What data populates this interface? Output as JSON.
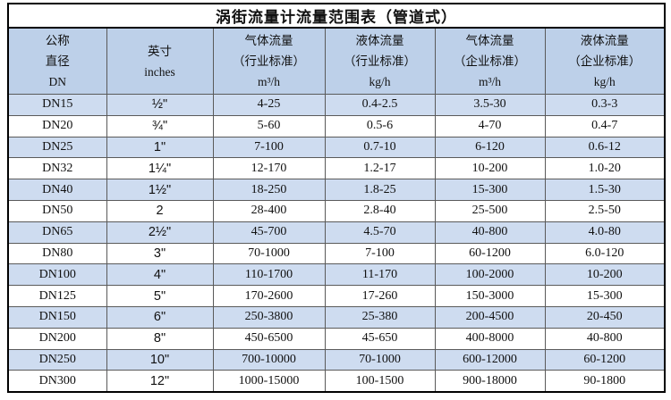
{
  "title": "涡街流量计流量范围表（管道式）",
  "colors": {
    "header_bg": "#bdd0e9",
    "row_alt_bg": "#cedcf0",
    "row_bg": "#ffffff",
    "border_outer": "#000000",
    "border_inner": "#5a5a5a",
    "text": "#111111"
  },
  "table": {
    "headers": [
      {
        "lines": [
          "公称",
          "直径",
          "DN"
        ]
      },
      {
        "lines": [
          "英寸",
          "",
          "inches"
        ]
      },
      {
        "lines": [
          "气体流量",
          "（行业标准）",
          "m³/h"
        ]
      },
      {
        "lines": [
          "液体流量",
          "（行业标准）",
          "kg/h"
        ]
      },
      {
        "lines": [
          "气体流量",
          "（企业标准）",
          "m³/h"
        ]
      },
      {
        "lines": [
          "液体流量",
          "（企业标准）",
          "kg/h"
        ]
      }
    ],
    "rows": [
      [
        "DN15",
        "½\"",
        "4-25",
        "0.4-2.5",
        "3.5-30",
        "0.3-3"
      ],
      [
        "DN20",
        "¾\"",
        "5-60",
        "0.5-6",
        "4-70",
        "0.4-7"
      ],
      [
        "DN25",
        "1\"",
        "7-100",
        "0.7-10",
        "6-120",
        "0.6-12"
      ],
      [
        "DN32",
        "1¼\"",
        "12-170",
        "1.2-17",
        "10-200",
        "1.0-20"
      ],
      [
        "DN40",
        "1½\"",
        "18-250",
        "1.8-25",
        "15-300",
        "1.5-30"
      ],
      [
        "DN50",
        "2",
        "28-400",
        "2.8-40",
        "25-500",
        "2.5-50"
      ],
      [
        "DN65",
        "2½\"",
        "45-700",
        "4.5-70",
        "40-800",
        "4.0-80"
      ],
      [
        "DN80",
        "3\"",
        "70-1000",
        "7-100",
        "60-1200",
        "6.0-120"
      ],
      [
        "DN100",
        "4\"",
        "110-1700",
        "11-170",
        "100-2000",
        "10-200"
      ],
      [
        "DN125",
        "5\"",
        "170-2600",
        "17-260",
        "150-3000",
        "15-300"
      ],
      [
        "DN150",
        "6\"",
        "250-3800",
        "25-380",
        "200-4500",
        "20-450"
      ],
      [
        "DN200",
        "8\"",
        "450-6500",
        "45-650",
        "400-8000",
        "40-800"
      ],
      [
        "DN250",
        "10\"",
        "700-10000",
        "70-1000",
        "600-12000",
        "60-1200"
      ],
      [
        "DN300",
        "12\"",
        "1000-15000",
        "100-1500",
        "900-18000",
        "90-1800"
      ]
    ]
  }
}
